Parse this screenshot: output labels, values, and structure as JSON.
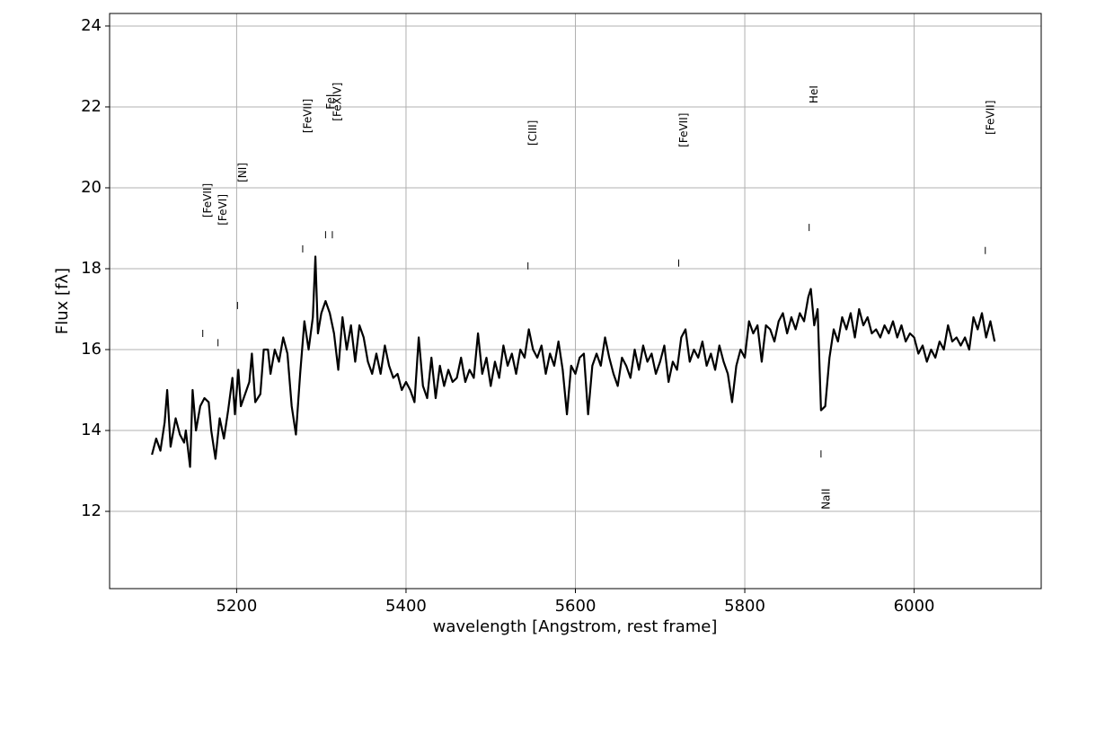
{
  "chart_data": {
    "type": "line",
    "xlabel": "wavelength [Angstrom, rest frame]",
    "ylabel": "Flux [fλ]",
    "xlim": [
      5050,
      6150
    ],
    "ylim": [
      10.09,
      24.31
    ],
    "xticks": [
      5200,
      5400,
      5600,
      5800,
      6000
    ],
    "yticks": [
      12,
      14,
      16,
      18,
      20,
      22,
      24
    ],
    "grid": true,
    "color": "#000000",
    "x": [
      5100,
      5105,
      5110,
      5115,
      5118,
      5122,
      5128,
      5133,
      5138,
      5140,
      5145,
      5148,
      5152,
      5157,
      5162,
      5167,
      5170,
      5175,
      5180,
      5185,
      5190,
      5195,
      5198,
      5202,
      5205,
      5210,
      5215,
      5218,
      5222,
      5228,
      5232,
      5237,
      5240,
      5245,
      5250,
      5255,
      5260,
      5265,
      5270,
      5275,
      5280,
      5285,
      5290,
      5293,
      5296,
      5300,
      5305,
      5310,
      5315,
      5320,
      5325,
      5330,
      5335,
      5340,
      5345,
      5350,
      5355,
      5360,
      5365,
      5370,
      5375,
      5380,
      5385,
      5390,
      5395,
      5400,
      5405,
      5410,
      5415,
      5420,
      5425,
      5430,
      5435,
      5440,
      5445,
      5450,
      5455,
      5460,
      5465,
      5470,
      5475,
      5480,
      5485,
      5490,
      5495,
      5500,
      5505,
      5510,
      5515,
      5520,
      5525,
      5530,
      5535,
      5540,
      5545,
      5550,
      5555,
      5560,
      5565,
      5570,
      5575,
      5580,
      5585,
      5590,
      5595,
      5600,
      5605,
      5610,
      5615,
      5620,
      5625,
      5630,
      5635,
      5640,
      5645,
      5650,
      5655,
      5660,
      5665,
      5670,
      5675,
      5680,
      5685,
      5690,
      5695,
      5700,
      5705,
      5710,
      5715,
      5720,
      5725,
      5730,
      5735,
      5740,
      5745,
      5750,
      5755,
      5760,
      5765,
      5770,
      5775,
      5780,
      5785,
      5790,
      5795,
      5800,
      5805,
      5810,
      5815,
      5820,
      5825,
      5830,
      5835,
      5840,
      5845,
      5850,
      5855,
      5860,
      5865,
      5870,
      5875,
      5878,
      5882,
      5886,
      5890,
      5895,
      5900,
      5905,
      5910,
      5915,
      5920,
      5925,
      5930,
      5935,
      5940,
      5945,
      5950,
      5955,
      5960,
      5965,
      5970,
      5975,
      5980,
      5985,
      5990,
      5995,
      6000,
      6005,
      6010,
      6015,
      6020,
      6025,
      6030,
      6035,
      6040,
      6045,
      6050,
      6055,
      6060,
      6065,
      6070,
      6075,
      6080,
      6085,
      6090,
      6095
    ],
    "values": [
      13.4,
      13.8,
      13.5,
      14.2,
      15.0,
      13.6,
      14.3,
      13.9,
      13.7,
      14.0,
      13.1,
      15.0,
      14.0,
      14.6,
      14.8,
      14.7,
      14.0,
      13.3,
      14.3,
      13.8,
      14.5,
      15.3,
      14.4,
      15.5,
      14.6,
      14.9,
      15.2,
      15.9,
      14.7,
      14.9,
      16.0,
      16.0,
      15.4,
      16.0,
      15.7,
      16.3,
      15.9,
      14.6,
      13.9,
      15.4,
      16.7,
      16.0,
      16.8,
      18.3,
      16.4,
      16.9,
      17.2,
      16.9,
      16.4,
      15.5,
      16.8,
      16.0,
      16.6,
      15.7,
      16.6,
      16.3,
      15.7,
      15.4,
      15.9,
      15.4,
      16.1,
      15.6,
      15.3,
      15.4,
      15.0,
      15.2,
      15.0,
      14.7,
      16.3,
      15.1,
      14.8,
      15.8,
      14.8,
      15.6,
      15.1,
      15.5,
      15.2,
      15.3,
      15.8,
      15.2,
      15.5,
      15.3,
      16.4,
      15.4,
      15.8,
      15.1,
      15.7,
      15.3,
      16.1,
      15.6,
      15.9,
      15.4,
      16.0,
      15.8,
      16.5,
      16.0,
      15.8,
      16.1,
      15.4,
      15.9,
      15.6,
      16.2,
      15.5,
      14.4,
      15.6,
      15.4,
      15.8,
      15.9,
      14.4,
      15.6,
      15.9,
      15.6,
      16.3,
      15.8,
      15.4,
      15.1,
      15.8,
      15.6,
      15.3,
      16.0,
      15.5,
      16.1,
      15.7,
      15.9,
      15.4,
      15.7,
      16.1,
      15.2,
      15.7,
      15.5,
      16.3,
      16.5,
      15.7,
      16.0,
      15.8,
      16.2,
      15.6,
      15.9,
      15.5,
      16.1,
      15.7,
      15.4,
      14.7,
      15.6,
      16.0,
      15.8,
      16.7,
      16.4,
      16.6,
      15.7,
      16.6,
      16.5,
      16.2,
      16.7,
      16.9,
      16.4,
      16.8,
      16.5,
      16.9,
      16.7,
      17.3,
      17.5,
      16.6,
      17.0,
      14.5,
      14.6,
      15.8,
      16.5,
      16.2,
      16.8,
      16.5,
      16.9,
      16.3,
      17.0,
      16.6,
      16.8,
      16.4,
      16.5,
      16.3,
      16.6,
      16.4,
      16.7,
      16.3,
      16.6,
      16.2,
      16.4,
      16.3,
      15.9,
      16.1,
      15.7,
      16.0,
      15.8,
      16.2,
      16.0,
      16.6,
      16.2,
      16.3,
      16.1,
      16.3,
      16.0,
      16.8,
      16.5,
      16.9,
      16.3,
      16.7,
      16.2
    ],
    "annotations": [
      {
        "text": "[FeVII]",
        "x": 5160,
        "y": 16.4
      },
      {
        "text": "[FeVI]",
        "x": 5178,
        "y": 16.17
      },
      {
        "text": "[NI]",
        "x": 5201,
        "y": 17.09
      },
      {
        "text": "[FeVII]",
        "x": 5278,
        "y": 18.49
      },
      {
        "text": "FeI",
        "x": 5305,
        "y": 18.84
      },
      {
        "text": "[FeXIV]",
        "x": 5313,
        "y": 18.84
      },
      {
        "text": "[CIII]",
        "x": 5544,
        "y": 18.07
      },
      {
        "text": "[FeVII]",
        "x": 5722,
        "y": 18.14
      },
      {
        "text": "HeI",
        "x": 5876,
        "y": 19.02
      },
      {
        "text": "NaII",
        "x": 5890,
        "y": 13.42
      },
      {
        "text": "[FeVII]",
        "x": 6084,
        "y": 18.45
      }
    ]
  }
}
